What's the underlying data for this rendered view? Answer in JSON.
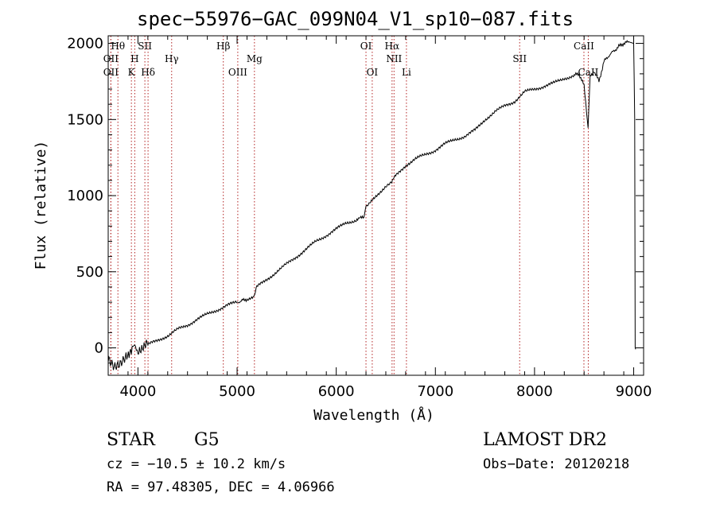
{
  "chart_data": {
    "type": "line",
    "title": "spec−55976−GAC_099N04_V1_sp10−087.fits",
    "xlabel": "Wavelength (Å)",
    "ylabel": "Flux (relative)",
    "xlim": [
      3700,
      9100
    ],
    "ylim": [
      -180,
      2050
    ],
    "xticks": [
      4000,
      5000,
      6000,
      7000,
      8000,
      9000
    ],
    "yticks": [
      0,
      500,
      1000,
      1500,
      2000
    ],
    "line_color": "#000000",
    "marker_color": "#b22222",
    "series": [
      {
        "x": [
          3700,
          3760,
          3820,
          3880,
          3950,
          4000,
          4100,
          4200,
          4300,
          4400,
          4500,
          4600,
          4700,
          4800,
          4900,
          5000,
          5050,
          5100,
          5170,
          5200,
          5300,
          5400,
          5500,
          5600,
          5700,
          5800,
          5900,
          6000,
          6100,
          6200,
          6280,
          6300,
          6330,
          6400,
          6500,
          6560,
          6600,
          6700,
          6800,
          6900,
          7000,
          7100,
          7200,
          7300,
          7400,
          7500,
          7600,
          7700,
          7800,
          7900,
          8000,
          8100,
          8200,
          8300,
          8400,
          8450,
          8500,
          8540,
          8560,
          8600,
          8650,
          8700,
          8750,
          8800,
          8850,
          8900,
          8950,
          9000,
          9010,
          9015,
          9020
        ],
        "y": [
          -50,
          -100,
          -80,
          -30,
          -10,
          0,
          20,
          50,
          80,
          120,
          150,
          190,
          220,
          250,
          280,
          300,
          310,
          320,
          330,
          400,
          450,
          500,
          550,
          600,
          650,
          700,
          740,
          780,
          820,
          840,
          860,
          920,
          940,
          1000,
          1060,
          1090,
          1130,
          1200,
          1240,
          1270,
          1300,
          1340,
          1370,
          1390,
          1430,
          1500,
          1550,
          1590,
          1620,
          1680,
          1700,
          1720,
          1740,
          1770,
          1790,
          1800,
          1720,
          1450,
          1780,
          1820,
          1750,
          1880,
          1920,
          1950,
          1980,
          2000,
          2010,
          2000,
          1500,
          0,
          -10
        ]
      }
    ],
    "spectral_lines": [
      {
        "name": "Hθ",
        "wavelength": 3798,
        "row": 1
      },
      {
        "name": "OII",
        "wavelength": 3727,
        "row": 2
      },
      {
        "name": "OII",
        "wavelength": 3727,
        "row": 3
      },
      {
        "name": "H",
        "wavelength": 3968,
        "row": 2
      },
      {
        "name": "K",
        "wavelength": 3934,
        "row": 3
      },
      {
        "name": "SII",
        "wavelength": 4070,
        "row": 1
      },
      {
        "name": "Hδ",
        "wavelength": 4102,
        "row": 3
      },
      {
        "name": "Hγ",
        "wavelength": 4340,
        "row": 2
      },
      {
        "name": "Hβ",
        "wavelength": 4861,
        "row": 1
      },
      {
        "name": "OIII",
        "wavelength": 5007,
        "row": 3
      },
      {
        "name": "Mg",
        "wavelength": 5175,
        "row": 2
      },
      {
        "name": "OI",
        "wavelength": 6300,
        "row": 1
      },
      {
        "name": "OI",
        "wavelength": 6363,
        "row": 3
      },
      {
        "name": "Hα",
        "wavelength": 6563,
        "row": 1
      },
      {
        "name": "NII",
        "wavelength": 6583,
        "row": 2
      },
      {
        "name": "Li",
        "wavelength": 6708,
        "row": 3
      },
      {
        "name": "SII",
        "wavelength": 7850,
        "row": 2
      },
      {
        "name": "CaII",
        "wavelength": 8498,
        "row": 1
      },
      {
        "name": "CaII",
        "wavelength": 8542,
        "row": 3
      }
    ]
  },
  "info": {
    "class_label": "STAR",
    "subclass": "G5",
    "survey": "LAMOST DR2",
    "cz": "cz = −10.5 ± 10.2 km/s",
    "obs_date": "Obs−Date: 20120218",
    "radec": "RA =  97.48305, DEC =   4.06966"
  }
}
